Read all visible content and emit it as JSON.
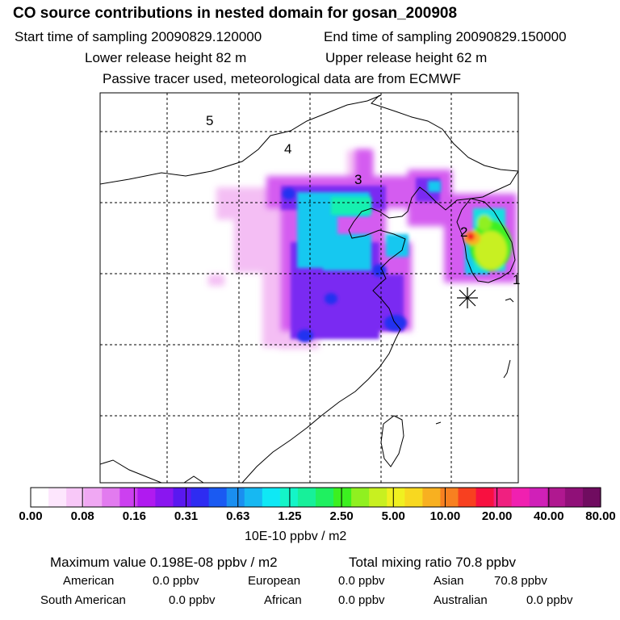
{
  "header": {
    "title": "CO  source contributions in nested domain for gosan_200908",
    "start_label": "Start time of sampling 20090829.120000",
    "end_label": "End time of sampling 20090829.150000",
    "lower_release": "Lower release height   82 m",
    "upper_release": "Upper release height   62 m",
    "tracer_note": "Passive tracer used, meteorological data are from ECMWF"
  },
  "map": {
    "region_labels": [
      "1",
      "2",
      "3",
      "4",
      "5"
    ],
    "receptor_marker": "gosan-receptor-star"
  },
  "colorbar": {
    "colors": [
      "#ffffff",
      "#fde6fd",
      "#f8c8f8",
      "#f0a8f3",
      "#e27bef",
      "#cc40f0",
      "#b01af0",
      "#8a16f0",
      "#5a18f0",
      "#2e2cf2",
      "#1a5af2",
      "#1a8ff0",
      "#17b8f2",
      "#0fe8f5",
      "#14f5c8",
      "#17f09a",
      "#1ff060",
      "#3cf020",
      "#90f020",
      "#c8f020",
      "#f0f020",
      "#f8d820",
      "#f8b020",
      "#f88020",
      "#f84020",
      "#f81040",
      "#f02080",
      "#f020b0",
      "#d020b8",
      "#b01890",
      "#901078",
      "#700c60"
    ],
    "tick_labels": [
      "0.00",
      "0.08",
      "0.16",
      "0.31",
      "0.63",
      "1.25",
      "2.50",
      "5.00",
      "10.00",
      "20.00",
      "40.00",
      "80.00"
    ],
    "units": "10E-10 ppbv / m2"
  },
  "summary": {
    "max_value": "Maximum value  0.198E-08 ppbv / m2",
    "total_mixing": "Total mixing ratio      70.8 ppbv",
    "american_label": "American",
    "american_value": "0.0 ppbv",
    "european_label": "European",
    "european_value": "0.0 ppbv",
    "asian_label": "Asian",
    "asian_value": "70.8 ppbv",
    "south_american_label": "South American",
    "south_american_value": "0.0 ppbv",
    "african_label": "African",
    "african_value": "0.0 ppbv",
    "australian_label": "Australian",
    "australian_value": "0.0 ppbv"
  }
}
